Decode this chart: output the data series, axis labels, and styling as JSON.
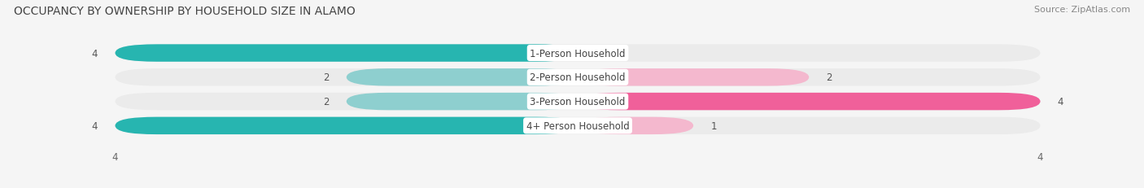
{
  "title": "OCCUPANCY BY OWNERSHIP BY HOUSEHOLD SIZE IN ALAMO",
  "source": "Source: ZipAtlas.com",
  "categories": [
    "1-Person Household",
    "2-Person Household",
    "3-Person Household",
    "4+ Person Household"
  ],
  "owner_values": [
    4,
    2,
    2,
    4
  ],
  "renter_values": [
    0,
    2,
    4,
    1
  ],
  "owner_colors": [
    "#27b5b0",
    "#8ecfcf",
    "#8ecfcf",
    "#27b5b0"
  ],
  "renter_colors": [
    "#f4b8ce",
    "#f4b8ce",
    "#f0609a",
    "#f4b8ce"
  ],
  "bar_bg_color": "#ebebeb",
  "fig_bg_color": "#f5f5f5",
  "max_value": 4,
  "title_fontsize": 10,
  "source_fontsize": 8,
  "label_fontsize": 8.5,
  "tick_fontsize": 8.5,
  "val_fontsize": 8.5
}
